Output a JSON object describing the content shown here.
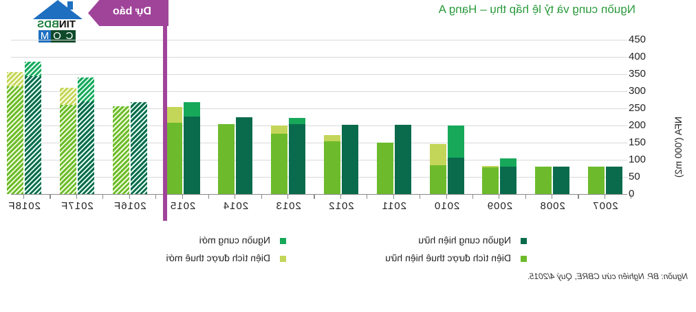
{
  "header": {
    "title": "Nguồn cung và tỷ lệ hấp thụ – Hạng A",
    "forecast_banner": "Dự báo",
    "logo": {
      "top": "TIN",
      "top2": "BDS",
      "bottom": [
        "C",
        "O",
        "M"
      ]
    }
  },
  "axis": {
    "ylabel": "NFA ('000 m2)",
    "yticks": [
      "0",
      "50",
      "100",
      "150",
      "200",
      "250",
      "300",
      "350",
      "400",
      "450"
    ]
  },
  "legend": {
    "existing_supply": "Nguồn cung hiện hữu",
    "new_supply": "Nguồn cung mới",
    "existing_leased": "Diện tích được thuê hiện hữu",
    "new_leased": "Diện tích được thuê mới"
  },
  "source": "Nguồn: BP. Nghiên cứu CBRE, Quý 4/2015.",
  "colors": {
    "existing_supply": "#0a6b4c",
    "new_supply": "#17a85a",
    "existing_leased": "#6dbb2c",
    "new_leased": "#c4d659",
    "forecast": "#a0449a",
    "title": "#2a9a3c"
  },
  "chart_data": {
    "type": "bar",
    "title": "Nguồn cung và tỷ lệ hấp thụ – Hạng A",
    "xlabel": "",
    "ylabel": "NFA ('000 m2)",
    "ylim": [
      0,
      450
    ],
    "grid": true,
    "stacked": true,
    "mirrored_horizontally": true,
    "forecast_marker": "Dự báo",
    "categories": [
      "2007",
      "2008",
      "2009",
      "2010",
      "2011",
      "2012",
      "2013",
      "2014",
      "2015",
      "2016F",
      "2017F",
      "2018F"
    ],
    "series": [
      {
        "name": "Nguồn cung hiện hữu",
        "stack": "supply",
        "values": [
          80,
          80,
          80,
          106,
          202,
          202,
          204,
          224,
          226,
          268,
          270,
          344
        ]
      },
      {
        "name": "Nguồn cung mới",
        "stack": "supply",
        "values": [
          0,
          0,
          26,
          96,
          0,
          0,
          20,
          0,
          44,
          0,
          72,
          44
        ]
      },
      {
        "name": "Diện tích được thuê hiện hữu",
        "stack": "leased",
        "values": [
          80,
          80,
          78,
          84,
          150,
          154,
          176,
          204,
          208,
          256,
          260,
          314
        ]
      },
      {
        "name": "Diện tích được thuê mới",
        "stack": "leased",
        "values": [
          0,
          0,
          6,
          64,
          2,
          20,
          26,
          2,
          48,
          0,
          52,
          44
        ]
      }
    ]
  }
}
